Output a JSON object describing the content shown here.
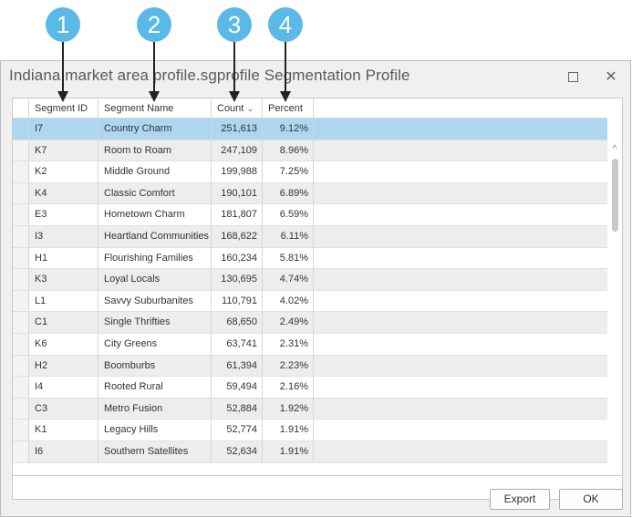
{
  "callouts": [
    "1",
    "2",
    "3",
    "4"
  ],
  "window": {
    "title": "Indiana market area profile.sgprofile Segmentation Profile",
    "maximize_icon": "maximize-icon",
    "close_glyph": "✕"
  },
  "table": {
    "headers": {
      "segment_id": "Segment ID",
      "segment_name": "Segment Name",
      "count": "Count",
      "count_sort_icon": "⌄",
      "percent": "Percent"
    },
    "rows": [
      {
        "id": "I7",
        "name": "Country Charm",
        "count": "251,613",
        "percent": "9.12%"
      },
      {
        "id": "K7",
        "name": "Room to Roam",
        "count": "247,109",
        "percent": "8.96%"
      },
      {
        "id": "K2",
        "name": "Middle Ground",
        "count": "199,988",
        "percent": "7.25%"
      },
      {
        "id": "K4",
        "name": "Classic Comfort",
        "count": "190,101",
        "percent": "6.89%"
      },
      {
        "id": "E3",
        "name": "Hometown Charm",
        "count": "181,807",
        "percent": "6.59%"
      },
      {
        "id": "I3",
        "name": "Heartland Communities",
        "count": "168,622",
        "percent": "6.11%"
      },
      {
        "id": "H1",
        "name": "Flourishing Families",
        "count": "160,234",
        "percent": "5.81%"
      },
      {
        "id": "K3",
        "name": "Loyal Locals",
        "count": "130,695",
        "percent": "4.74%"
      },
      {
        "id": "L1",
        "name": "Savvy Suburbanites",
        "count": "110,791",
        "percent": "4.02%"
      },
      {
        "id": "C1",
        "name": "Single Thrifties",
        "count": "68,650",
        "percent": "2.49%"
      },
      {
        "id": "K6",
        "name": "City Greens",
        "count": "63,741",
        "percent": "2.31%"
      },
      {
        "id": "H2",
        "name": "Boomburbs",
        "count": "61,394",
        "percent": "2.23%"
      },
      {
        "id": "I4",
        "name": "Rooted Rural",
        "count": "59,494",
        "percent": "2.16%"
      },
      {
        "id": "C3",
        "name": "Metro Fusion",
        "count": "52,884",
        "percent": "1.92%"
      },
      {
        "id": "K1",
        "name": "Legacy Hills",
        "count": "52,774",
        "percent": "1.91%"
      },
      {
        "id": "I6",
        "name": "Southern Satellites",
        "count": "52,634",
        "percent": "1.91%"
      }
    ]
  },
  "scroll": {
    "up_glyph": "^",
    "down_glyph": "⌄"
  },
  "buttons": {
    "export": "Export",
    "ok": "OK"
  },
  "colors": {
    "callout": "#5bb9e8",
    "selected_row": "#aed6f1",
    "alt_row": "#ededed"
  }
}
